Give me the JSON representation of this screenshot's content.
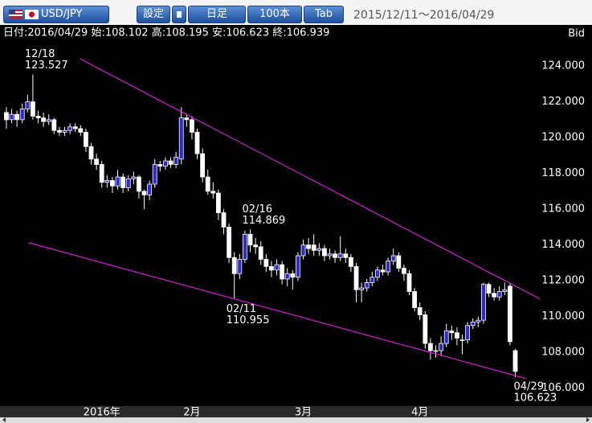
{
  "toolbar": {
    "pair": "USD/JPY",
    "settings": "設定",
    "period": "日足",
    "count": "100本",
    "tab": "Tab",
    "range": "2015/12/11～2016/04/29"
  },
  "info": "日付:2016/04/29 始:108.102 高:108.195 安:106.623 終:106.939",
  "chart_data": {
    "type": "candlestick",
    "price_type": "Bid",
    "open": [
      121.4,
      121.0,
      121.3,
      121.0,
      121.6,
      122.0,
      121.2,
      121.1,
      120.9,
      121.0,
      120.4,
      120.3,
      120.4,
      120.6,
      120.5,
      120.3,
      119.5,
      118.8,
      118.5,
      117.5,
      117.6,
      117.3,
      117.8,
      117.2,
      117.7,
      117.8,
      117.0,
      116.8,
      117.4,
      118.5,
      118.4,
      118.7,
      118.5,
      118.8,
      121.1,
      121.0,
      120.3,
      119.1,
      117.8,
      117.0,
      116.9,
      115.8,
      115.0,
      113.3,
      112.4,
      113.2,
      114.6,
      114.0,
      113.9,
      113.2,
      112.8,
      112.6,
      112.9,
      112.1,
      112.4,
      112.2,
      113.4,
      114.0,
      114.0,
      113.7,
      113.8,
      113.4,
      113.5,
      113.3,
      113.5,
      113.3,
      112.8,
      111.5,
      111.6,
      111.9,
      112.2,
      112.6,
      112.5,
      113.1,
      113.4,
      112.7,
      112.4,
      111.4,
      110.5,
      110.1,
      108.5,
      108.1,
      108.1,
      108.5,
      109.2,
      109.1,
      108.7,
      108.7,
      109.5,
      109.7,
      109.8,
      111.8,
      111.3,
      111.1,
      111.4,
      111.7,
      108.102
    ],
    "high": [
      121.7,
      121.6,
      121.5,
      121.9,
      122.4,
      123.527,
      121.5,
      121.4,
      121.3,
      121.1,
      120.6,
      120.6,
      120.8,
      120.8,
      120.7,
      120.5,
      119.7,
      119.1,
      118.7,
      117.9,
      117.8,
      118.2,
      118.0,
      117.9,
      118.1,
      117.9,
      117.1,
      117.6,
      118.8,
      118.7,
      118.9,
      118.9,
      119.2,
      121.7,
      121.3,
      121.2,
      120.5,
      119.4,
      118.2,
      117.5,
      117.1,
      116.0,
      115.2,
      113.6,
      113.5,
      114.8,
      114.869,
      114.4,
      114.2,
      113.5,
      113.1,
      113.2,
      113.1,
      112.7,
      112.6,
      113.6,
      114.3,
      114.4,
      114.6,
      114.1,
      114.0,
      113.8,
      113.7,
      114.5,
      113.8,
      113.5,
      113.0,
      111.9,
      112.1,
      112.5,
      112.8,
      112.9,
      113.3,
      113.8,
      113.6,
      112.9,
      112.6,
      111.6,
      110.8,
      110.3,
      108.8,
      108.4,
      108.9,
      109.6,
      109.5,
      109.4,
      109.0,
      109.7,
      109.9,
      110.0,
      111.9,
      111.9,
      111.6,
      111.7,
      111.9,
      111.9,
      108.195
    ],
    "low": [
      120.5,
      120.8,
      120.6,
      120.8,
      121.4,
      121.0,
      120.8,
      120.6,
      120.7,
      120.2,
      120.1,
      120.1,
      120.2,
      120.3,
      120.1,
      119.2,
      118.5,
      118.2,
      117.2,
      117.2,
      116.9,
      117.1,
      116.9,
      117.0,
      117.4,
      116.6,
      116.0,
      116.5,
      117.2,
      118.1,
      118.2,
      118.3,
      118.3,
      118.5,
      120.6,
      119.9,
      118.8,
      117.5,
      116.8,
      116.6,
      115.4,
      114.6,
      113.0,
      110.955,
      112.1,
      113.0,
      113.6,
      113.5,
      112.9,
      112.5,
      112.2,
      112.3,
      111.8,
      111.7,
      111.5,
      112.0,
      113.2,
      113.5,
      113.4,
      113.4,
      113.1,
      113.2,
      113.0,
      113.1,
      113.0,
      112.5,
      110.8,
      110.8,
      111.4,
      111.7,
      112.0,
      112.3,
      112.3,
      112.9,
      112.5,
      112.0,
      111.2,
      110.3,
      109.8,
      108.2,
      107.6,
      107.7,
      107.8,
      108.3,
      108.7,
      108.4,
      107.9,
      108.5,
      109.3,
      109.4,
      109.6,
      111.1,
      110.9,
      110.9,
      111.2,
      108.4,
      106.623
    ],
    "close": [
      121.0,
      121.3,
      121.0,
      121.6,
      122.0,
      121.2,
      121.1,
      120.9,
      121.0,
      120.4,
      120.3,
      120.4,
      120.6,
      120.5,
      120.3,
      119.5,
      118.8,
      118.5,
      117.5,
      117.6,
      117.3,
      117.8,
      117.2,
      117.7,
      117.8,
      117.0,
      116.8,
      117.4,
      118.5,
      118.4,
      118.7,
      118.5,
      118.9,
      121.1,
      121.0,
      120.3,
      119.1,
      117.8,
      117.0,
      116.9,
      115.8,
      115.0,
      113.3,
      112.4,
      113.2,
      114.6,
      114.0,
      113.9,
      113.2,
      112.8,
      112.6,
      112.9,
      112.1,
      112.4,
      112.2,
      113.4,
      114.0,
      113.8,
      113.7,
      113.8,
      113.4,
      113.5,
      113.3,
      113.5,
      113.3,
      112.8,
      111.5,
      111.6,
      111.9,
      112.2,
      112.6,
      112.5,
      113.1,
      113.4,
      112.7,
      112.4,
      111.4,
      110.5,
      110.1,
      108.5,
      108.1,
      108.1,
      108.5,
      109.2,
      109.1,
      108.8,
      108.7,
      109.5,
      109.7,
      109.8,
      111.8,
      111.3,
      111.1,
      111.4,
      111.5,
      108.6,
      106.939
    ],
    "up_color": "#2b2bd6",
    "down_color": "#ffffff",
    "trendline_color": "#d020d0",
    "xlim": [
      -1.2,
      98.8
    ],
    "xticks": [
      {
        "value": 18,
        "label": "2016年"
      },
      {
        "value": 35,
        "label": "2月"
      },
      {
        "value": 56,
        "label": "3月"
      },
      {
        "value": 78,
        "label": "4月"
      }
    ],
    "ylim": [
      105.0,
      125.44
    ],
    "yticks": [
      {
        "value": 106,
        "label": "106.000"
      },
      {
        "value": 108,
        "label": "108.000"
      },
      {
        "value": 110,
        "label": "110.000"
      },
      {
        "value": 112,
        "label": "112.000"
      },
      {
        "value": 114,
        "label": "114.000"
      },
      {
        "value": 116,
        "label": "116.000"
      },
      {
        "value": 118,
        "label": "118.000"
      },
      {
        "value": 120,
        "label": "120.000"
      },
      {
        "value": 122,
        "label": "122.000"
      },
      {
        "value": 124,
        "label": "124.000"
      }
    ],
    "annotations": [
      {
        "date": "12/18",
        "value": 123.527
      },
      {
        "date": "02/16",
        "value": 114.869
      },
      {
        "date": "02/11",
        "value": 110.955
      },
      {
        "date": "04/29",
        "value": 106.623
      }
    ],
    "trendlines": [
      {
        "start": [
          13.9,
          124.4
        ],
        "end": [
          100.7,
          110.98
        ]
      },
      {
        "start": [
          4.2,
          114.13
        ],
        "end": [
          98.0,
          106.54
        ]
      }
    ]
  }
}
